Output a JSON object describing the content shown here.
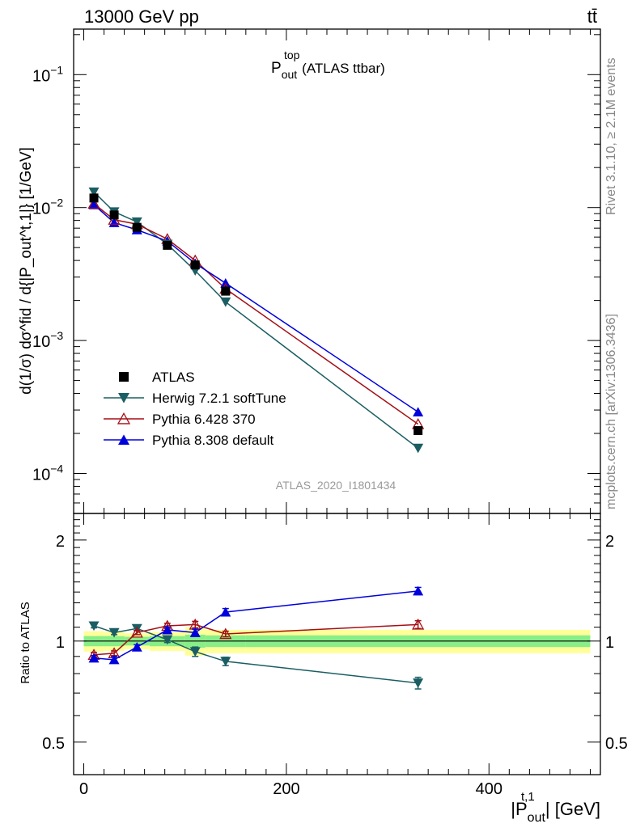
{
  "header": {
    "left": "13000 GeV pp",
    "right": "tt̄"
  },
  "side_labels": {
    "rivet": "Rivet 3.1.10, ≥ 2.1M events",
    "mcplots": "mcplots.cern.ch [arXiv:1306.3436]"
  },
  "main_title": {
    "base": "P",
    "sup": "top",
    "sub": "out",
    "rest": "(ATLAS ttbar)"
  },
  "analysis_label": "ATLAS_2020_I1801434",
  "y_label_main": "d(1/σ) dσ^fid / d{|P_out^t,1|} [1/GeV]",
  "y_label_ratio": "Ratio to ATLAS",
  "x_label": {
    "pre": "|P",
    "sup": "t,1",
    "sub": "out",
    "post": "| [GeV]"
  },
  "colors": {
    "atlas": "#000000",
    "herwig": "#1a5e63",
    "pythia6": "#a50f15",
    "pythia8": "#0000dd",
    "band_inner": "#88ee88",
    "band_outer": "#ffff99"
  },
  "chart_data": [
    {
      "type": "scatter",
      "title": "P_out^top (ATLAS ttbar)",
      "xlabel": "|P_out^t,1| [GeV]",
      "ylabel": "d(1/σ) dσ^fid / d{|P_out^t,1|} [1/GeV]",
      "xlim": [
        -10,
        510
      ],
      "ylim": [
        5e-05,
        0.22
      ],
      "yscale": "log",
      "y_ticks": [
        {
          "value": 0.1,
          "base": "10",
          "exp": "−1"
        },
        {
          "value": 0.01,
          "base": "10",
          "exp": "−2"
        },
        {
          "value": 0.001,
          "base": "10",
          "exp": "−3"
        },
        {
          "value": 0.0001,
          "base": "10",
          "exp": "−4"
        }
      ],
      "legend_position": "bottom-left",
      "series": [
        {
          "name": "ATLAS",
          "marker": "square",
          "x": [
            10,
            30,
            52.5,
            82.5,
            110,
            140,
            330
          ],
          "y": [
            0.0118,
            0.0088,
            0.0071,
            0.0052,
            0.0037,
            0.00235,
            0.00021
          ]
        },
        {
          "name": "Herwig 7.2.1 softTune",
          "marker": "triangle-down",
          "x": [
            10,
            30,
            52.5,
            82.5,
            110,
            140,
            330
          ],
          "y": [
            0.0131,
            0.0093,
            0.0078,
            0.0053,
            0.00335,
            0.00195,
            0.000155
          ]
        },
        {
          "name": "Pythia 6.428 370",
          "marker": "triangle-up-open",
          "x": [
            10,
            30,
            52.5,
            82.5,
            110,
            140,
            330
          ],
          "y": [
            0.0107,
            0.0081,
            0.0075,
            0.0058,
            0.004,
            0.00245,
            0.000235
          ]
        },
        {
          "name": "Pythia 8.308 default",
          "marker": "triangle-up",
          "x": [
            10,
            30,
            52.5,
            82.5,
            110,
            140,
            330
          ],
          "y": [
            0.0105,
            0.0077,
            0.0068,
            0.0056,
            0.0038,
            0.0027,
            0.00029
          ]
        }
      ]
    },
    {
      "type": "line",
      "ylabel": "Ratio to ATLAS",
      "xlabel": "|P_out^t,1| [GeV]",
      "xlim": [
        -10,
        510
      ],
      "ylim": [
        0.4,
        2.4
      ],
      "y_ticks": [
        0.5,
        1,
        2
      ],
      "x_ticks": [
        0,
        200,
        400
      ],
      "reference": 1,
      "bands": [
        {
          "x0": 0,
          "x1": 20,
          "inner": [
            0.965,
            1.035
          ],
          "outer": [
            0.93,
            1.07
          ]
        },
        {
          "x0": 20,
          "x1": 40,
          "inner": [
            0.965,
            1.035
          ],
          "outer": [
            0.935,
            1.065
          ]
        },
        {
          "x0": 40,
          "x1": 65,
          "inner": [
            0.97,
            1.03
          ],
          "outer": [
            0.945,
            1.055
          ]
        },
        {
          "x0": 65,
          "x1": 100,
          "inner": [
            0.965,
            1.035
          ],
          "outer": [
            0.935,
            1.065
          ]
        },
        {
          "x0": 100,
          "x1": 120,
          "inner": [
            0.955,
            1.045
          ],
          "outer": [
            0.905,
            1.1
          ]
        },
        {
          "x0": 120,
          "x1": 160,
          "inner": [
            0.96,
            1.04
          ],
          "outer": [
            0.92,
            1.08
          ]
        },
        {
          "x0": 160,
          "x1": 500,
          "inner": [
            0.96,
            1.04
          ],
          "outer": [
            0.92,
            1.08
          ]
        }
      ],
      "series": [
        {
          "name": "Herwig 7.2.1 softTune",
          "marker": "triangle-down",
          "x": [
            10,
            30,
            52.5,
            82.5,
            110,
            140,
            330
          ],
          "y": [
            1.11,
            1.06,
            1.09,
            1.01,
            0.93,
            0.87,
            0.75
          ],
          "err": [
            0.015,
            0.015,
            0.015,
            0.02,
            0.03,
            0.025,
            0.03
          ]
        },
        {
          "name": "Pythia 6.428 370",
          "marker": "triangle-up-open",
          "x": [
            10,
            30,
            52.5,
            82.5,
            110,
            140,
            330
          ],
          "y": [
            0.91,
            0.92,
            1.06,
            1.11,
            1.12,
            1.05,
            1.12
          ],
          "err": [
            0.015,
            0.015,
            0.015,
            0.02,
            0.025,
            0.02,
            0.03
          ]
        },
        {
          "name": "Pythia 8.308 default",
          "marker": "triangle-up",
          "x": [
            10,
            30,
            52.5,
            82.5,
            110,
            140,
            330
          ],
          "y": [
            0.89,
            0.88,
            0.96,
            1.08,
            1.06,
            1.22,
            1.41
          ],
          "err": [
            0.015,
            0.02,
            0.015,
            0.02,
            0.025,
            0.03,
            0.035
          ]
        }
      ]
    }
  ]
}
